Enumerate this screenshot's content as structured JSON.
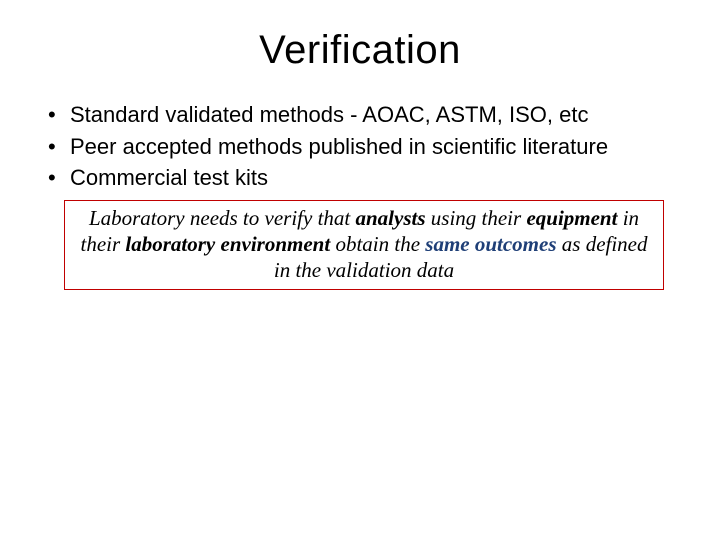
{
  "title": "Verification",
  "bullets": [
    "Standard validated methods -  AOAC, ASTM, ISO, etc",
    "Peer accepted methods published in scientific literature",
    "Commercial test kits"
  ],
  "callout": {
    "t1": "Laboratory needs to verify that ",
    "analysts": "analysts",
    "t2": " using their ",
    "equipment": "equipment",
    "t3": " in their ",
    "env": "laboratory environment",
    "t4": " obtain the ",
    "same": "same outcomes",
    "t5": " as defined in the validation data"
  },
  "colors": {
    "callout_border": "#c00000",
    "same_outcomes_color": "#1f3f77",
    "background": "#ffffff",
    "text": "#000000"
  },
  "typography": {
    "title_fontsize": 40,
    "bullet_fontsize": 22,
    "callout_fontsize": 21,
    "title_family": "Arial",
    "callout_family": "Times New Roman"
  }
}
